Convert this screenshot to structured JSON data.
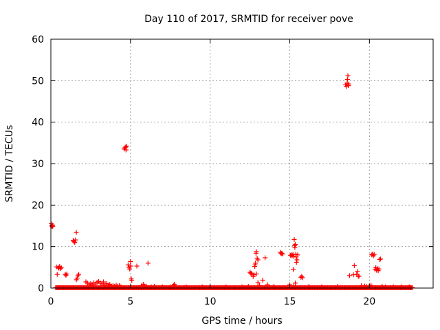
{
  "chart_data": {
    "type": "scatter",
    "title": "Day 110 of 2017, SRMTID for receiver pove",
    "xlabel": "GPS time / hours",
    "ylabel": "SRMTID / TECUs",
    "xlim": [
      0,
      24
    ],
    "ylim": [
      0,
      60
    ],
    "x_ticks": [
      0,
      5,
      10,
      15,
      20
    ],
    "y_ticks": [
      0,
      10,
      20,
      30,
      40,
      50,
      60
    ],
    "x_tick_labels": [
      "0",
      "5",
      "10",
      "15",
      "20"
    ],
    "y_tick_labels": [
      "0",
      "10",
      "20",
      "30",
      "40",
      "50",
      "60"
    ],
    "grid": true,
    "marker": "plus",
    "series": [
      {
        "name": "SRMTID",
        "color": "#ff0000",
        "baseline": {
          "x_start": 0.3,
          "x_end": 22.7,
          "x_step": 0.05,
          "y": 0.1
        },
        "points": [
          [
            0.02,
            15.5
          ],
          [
            0.05,
            15.0
          ],
          [
            0.08,
            14.8
          ],
          [
            0.1,
            15.2
          ],
          [
            0.12,
            14.9
          ],
          [
            0.35,
            5.1
          ],
          [
            0.45,
            5.0
          ],
          [
            0.5,
            4.8
          ],
          [
            0.55,
            5.2
          ],
          [
            0.6,
            4.7
          ],
          [
            0.65,
            4.9
          ],
          [
            0.4,
            3.3
          ],
          [
            0.9,
            3.3
          ],
          [
            0.95,
            3.1
          ],
          [
            1.0,
            3.4
          ],
          [
            1.4,
            11.5
          ],
          [
            1.45,
            11.2
          ],
          [
            1.5,
            11.0
          ],
          [
            1.55,
            11.6
          ],
          [
            1.6,
            13.4
          ],
          [
            1.6,
            2.0
          ],
          [
            1.65,
            2.4
          ],
          [
            1.7,
            3.0
          ],
          [
            1.75,
            3.3
          ],
          [
            2.2,
            1.5
          ],
          [
            2.3,
            1.2
          ],
          [
            2.4,
            0.9
          ],
          [
            2.5,
            1.1
          ],
          [
            2.6,
            0.8
          ],
          [
            2.7,
            1.3
          ],
          [
            2.8,
            1.0
          ],
          [
            2.9,
            1.4
          ],
          [
            3.0,
            1.6
          ],
          [
            3.1,
            1.2
          ],
          [
            3.2,
            1.0
          ],
          [
            3.3,
            1.5
          ],
          [
            3.4,
            0.8
          ],
          [
            3.5,
            1.1
          ],
          [
            3.6,
            0.7
          ],
          [
            3.7,
            0.9
          ],
          [
            3.8,
            0.5
          ],
          [
            3.9,
            0.6
          ],
          [
            4.0,
            0.4
          ],
          [
            4.1,
            0.7
          ],
          [
            4.2,
            0.5
          ],
          [
            4.3,
            0.6
          ],
          [
            4.4,
            0.3
          ],
          [
            4.6,
            33.5
          ],
          [
            4.65,
            33.8
          ],
          [
            4.7,
            34.0
          ],
          [
            4.75,
            34.2
          ],
          [
            4.72,
            33.3
          ],
          [
            4.85,
            5.6
          ],
          [
            4.9,
            5.0
          ],
          [
            4.95,
            4.6
          ],
          [
            5.0,
            6.4
          ],
          [
            5.02,
            5.3
          ],
          [
            5.05,
            2.2
          ],
          [
            5.08,
            1.8
          ],
          [
            5.4,
            5.3
          ],
          [
            5.7,
            0.6
          ],
          [
            5.8,
            0.9
          ],
          [
            5.9,
            0.5
          ],
          [
            6.0,
            0.4
          ],
          [
            6.1,
            6.0
          ],
          [
            6.3,
            0.3
          ],
          [
            6.5,
            0.4
          ],
          [
            7.0,
            0.3
          ],
          [
            7.5,
            0.3
          ],
          [
            7.7,
            0.6
          ],
          [
            7.75,
            0.9
          ],
          [
            7.8,
            0.5
          ],
          [
            8.5,
            0.3
          ],
          [
            9.5,
            0.3
          ],
          [
            11.0,
            0.3
          ],
          [
            12.0,
            0.3
          ],
          [
            12.4,
            0.4
          ],
          [
            12.5,
            3.8
          ],
          [
            12.55,
            3.6
          ],
          [
            12.6,
            3.5
          ],
          [
            12.7,
            2.8
          ],
          [
            12.75,
            3.2
          ],
          [
            12.8,
            5.2
          ],
          [
            12.82,
            5.6
          ],
          [
            12.85,
            6.0
          ],
          [
            12.88,
            8.4
          ],
          [
            12.9,
            8.8
          ],
          [
            12.95,
            7.2
          ],
          [
            13.0,
            6.8
          ],
          [
            12.9,
            3.4
          ],
          [
            13.0,
            1.3
          ],
          [
            13.1,
            0.6
          ],
          [
            13.3,
            1.9
          ],
          [
            13.45,
            7.3
          ],
          [
            13.6,
            0.8
          ],
          [
            14.0,
            0.4
          ],
          [
            14.4,
            8.6
          ],
          [
            14.45,
            8.3
          ],
          [
            14.5,
            8.4
          ],
          [
            14.55,
            8.2
          ],
          [
            15.0,
            0.8
          ],
          [
            15.05,
            7.9
          ],
          [
            15.1,
            8.0
          ],
          [
            15.15,
            7.8
          ],
          [
            15.2,
            8.1
          ],
          [
            15.22,
            4.5
          ],
          [
            15.25,
            7.6
          ],
          [
            15.28,
            11.7
          ],
          [
            15.3,
            10.2
          ],
          [
            15.32,
            9.8
          ],
          [
            15.35,
            10.5
          ],
          [
            15.38,
            8.2
          ],
          [
            15.4,
            7.5
          ],
          [
            15.42,
            6.2
          ],
          [
            15.45,
            6.8
          ],
          [
            15.5,
            8.0
          ],
          [
            15.25,
            0.5
          ],
          [
            15.35,
            1.2
          ],
          [
            15.7,
            2.6
          ],
          [
            15.75,
            2.8
          ],
          [
            15.8,
            2.5
          ],
          [
            16.2,
            0.4
          ],
          [
            17.0,
            0.3
          ],
          [
            18.0,
            0.4
          ],
          [
            18.5,
            49.0
          ],
          [
            18.55,
            48.6
          ],
          [
            18.6,
            49.4
          ],
          [
            18.62,
            50.3
          ],
          [
            18.65,
            51.2
          ],
          [
            18.7,
            49.2
          ],
          [
            18.68,
            48.8
          ],
          [
            18.75,
            3.0
          ],
          [
            19.0,
            3.2
          ],
          [
            19.05,
            5.4
          ],
          [
            19.2,
            3.3
          ],
          [
            19.25,
            4.0
          ],
          [
            19.3,
            2.8
          ],
          [
            19.35,
            2.9
          ],
          [
            19.5,
            0.6
          ],
          [
            19.7,
            0.5
          ],
          [
            19.8,
            0.4
          ],
          [
            20.0,
            0.5
          ],
          [
            20.1,
            0.7
          ],
          [
            20.15,
            8.0
          ],
          [
            20.2,
            8.2
          ],
          [
            20.25,
            7.8
          ],
          [
            20.3,
            8.1
          ],
          [
            20.35,
            4.5
          ],
          [
            20.4,
            4.9
          ],
          [
            20.45,
            4.3
          ],
          [
            20.5,
            4.7
          ],
          [
            20.55,
            4.2
          ],
          [
            20.6,
            4.6
          ],
          [
            20.65,
            6.9
          ],
          [
            20.7,
            7.0
          ],
          [
            20.8,
            0.4
          ],
          [
            21.0,
            0.3
          ],
          [
            21.5,
            0.3
          ],
          [
            22.0,
            0.3
          ],
          [
            22.5,
            0.3
          ]
        ]
      }
    ]
  }
}
